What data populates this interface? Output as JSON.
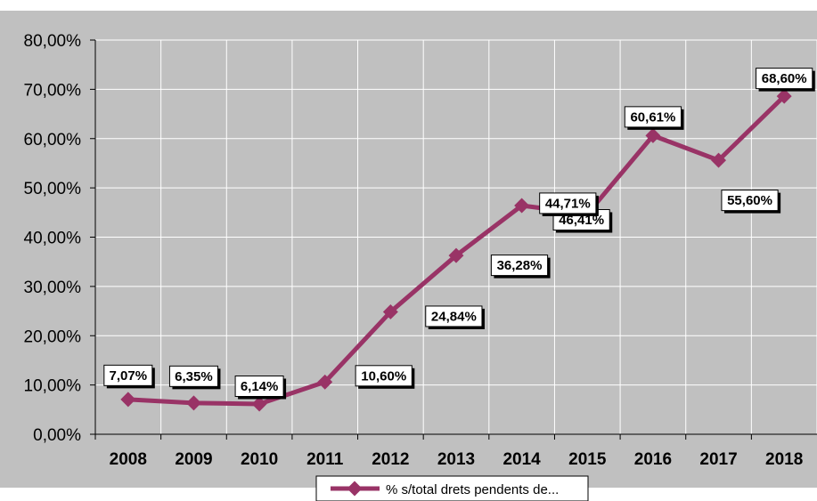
{
  "chart_data": {
    "type": "line",
    "categories": [
      "2008",
      "2009",
      "2010",
      "2011",
      "2012",
      "2013",
      "2014",
      "2015",
      "2016",
      "2017",
      "2018"
    ],
    "series": [
      {
        "name": "% s/total drets pendents de...",
        "values": [
          7.07,
          6.35,
          6.14,
          10.6,
          24.84,
          36.28,
          46.41,
          44.71,
          60.61,
          55.6,
          68.6
        ],
        "labels": [
          "7,07%",
          "6,35%",
          "6,14%",
          "10,60%",
          "24,84%",
          "36,28%",
          "46,41%",
          "44,71%",
          "60,61%",
          "55,60%",
          "68,60%"
        ]
      }
    ],
    "y_ticks": [
      "0,00%",
      "10,00%",
      "20,00%",
      "30,00%",
      "40,00%",
      "50,00%",
      "60,00%",
      "70,00%",
      "80,00%"
    ],
    "ylim": [
      0,
      80
    ],
    "grid": true,
    "legend_position": "bottom"
  },
  "colors": {
    "series": "#993366",
    "plot_background": "#c0c0c0",
    "chart_background": "#ffffff",
    "gridline": "#ffffff"
  }
}
